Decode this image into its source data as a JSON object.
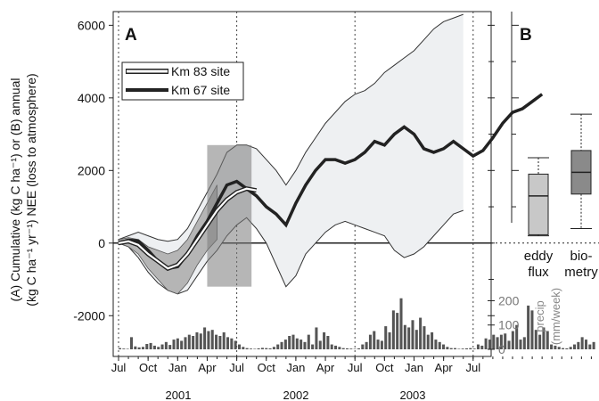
{
  "chart_data": [
    {
      "panel": "A",
      "type": "line",
      "panel_label": "A",
      "ylabel_line1": "(A) Cumulative (kg C ha⁻¹) or (B) annual",
      "ylabel_line2": "(kg C ha⁻¹ yr⁻¹) NEE (loss to atmosphere)",
      "ylim": [
        -3000,
        6500
      ],
      "yticks": [
        "6000",
        "4000",
        "2000",
        "0",
        "-2000"
      ],
      "x_month_ticks": [
        "Jul",
        "Oct",
        "Jan",
        "Apr",
        "Jul",
        "Oct",
        "Jan",
        "Apr",
        "Jul",
        "Oct",
        "Jan",
        "Apr",
        "Jul"
      ],
      "x_year_labels": [
        "2001",
        "2002",
        "2003"
      ],
      "legend": [
        {
          "label": "Km 83 site",
          "color": "#ffffff",
          "edge": "#222222"
        },
        {
          "label": "Km 67 site",
          "color": "#222222",
          "edge": "#222222"
        }
      ],
      "series": [
        {
          "name": "Km 67 site",
          "x_month": [
            0,
            1,
            2,
            3,
            4,
            5,
            6,
            7,
            8,
            9,
            10,
            11,
            12,
            13,
            14,
            15,
            16,
            17,
            18,
            19,
            20,
            21,
            22,
            23,
            24,
            25,
            26,
            27,
            28,
            29,
            30,
            31,
            32,
            33,
            34,
            35,
            36,
            37,
            38,
            39,
            40,
            41,
            42,
            43,
            44,
            45,
            46,
            47,
            48,
            49
          ],
          "center": [
            0,
            80,
            60,
            -200,
            -500,
            -700,
            -650,
            -300,
            200,
            600,
            1100,
            1600,
            1700,
            1500,
            1300,
            1000,
            800,
            500,
            1100,
            1600,
            2000,
            2300,
            2300,
            2200,
            2300,
            2500,
            2800,
            2700,
            3000,
            3200,
            3000,
            2600,
            2500,
            2600,
            2800,
            2600,
            2400,
            2550,
            2900,
            3300,
            3600,
            3700,
            3900,
            4100,
            null,
            null,
            null,
            null,
            null,
            null
          ],
          "upper": [
            100,
            200,
            300,
            200,
            100,
            50,
            100,
            400,
            900,
            1400,
            1900,
            2500,
            2700,
            2700,
            2600,
            2300,
            2000,
            1600,
            2000,
            2500,
            2900,
            3300,
            3600,
            3900,
            4100,
            4200,
            4400,
            4700,
            4900,
            5100,
            5300,
            5600,
            5900,
            6100,
            6200,
            6300,
            null,
            null,
            null,
            null,
            null,
            null,
            null,
            null,
            null,
            null,
            null,
            null,
            null,
            null
          ],
          "lower": [
            0,
            -100,
            -400,
            -800,
            -1100,
            -1300,
            -1400,
            -1300,
            -900,
            -500,
            -200,
            200,
            500,
            700,
            400,
            0,
            -600,
            -1200,
            -900,
            -300,
            0,
            300,
            500,
            600,
            500,
            400,
            300,
            200,
            -200,
            -400,
            -300,
            -100,
            200,
            500,
            800,
            900,
            null,
            null,
            null,
            null,
            null,
            null,
            null,
            null,
            null,
            null,
            null,
            null,
            null,
            null
          ]
        },
        {
          "name": "Km 83 site",
          "x_month": [
            0,
            1,
            2,
            3,
            4,
            5,
            6,
            7,
            8,
            9,
            10,
            11,
            12,
            13,
            14,
            15
          ],
          "center": [
            0,
            50,
            -50,
            -300,
            -500,
            -700,
            -600,
            -300,
            100,
            500,
            900,
            1200,
            1400,
            1500,
            1450,
            null
          ],
          "upper": [
            100,
            150,
            100,
            -100,
            -200,
            -300,
            -200,
            100,
            600,
            1100,
            1600,
            2100,
            2500,
            2700,
            null,
            null
          ],
          "lower": [
            0,
            -100,
            -300,
            -700,
            -1000,
            -1300,
            -1400,
            -1100,
            -600,
            -200,
            100,
            null,
            null,
            null,
            null,
            null
          ]
        }
      ]
    },
    {
      "panel": "precip",
      "type": "bar",
      "name": "precip",
      "ylabel_line1": "precip",
      "ylabel_line2": "(mm/week)",
      "yticks": [
        "200",
        "100",
        "0"
      ],
      "ylim": [
        0,
        220
      ],
      "values": [
        5,
        3,
        2,
        50,
        12,
        8,
        10,
        22,
        26,
        15,
        10,
        20,
        30,
        18,
        40,
        45,
        35,
        50,
        60,
        55,
        70,
        65,
        90,
        75,
        80,
        60,
        55,
        70,
        50,
        45,
        35,
        20,
        10,
        5,
        3,
        2,
        4,
        6,
        5,
        4,
        10,
        20,
        30,
        40,
        55,
        60,
        45,
        40,
        30,
        60,
        20,
        90,
        35,
        70,
        55,
        20,
        15,
        10,
        5,
        4,
        3,
        2,
        4,
        20,
        30,
        60,
        75,
        40,
        35,
        95,
        70,
        160,
        150,
        210,
        100,
        90,
        120,
        80,
        130,
        95,
        60,
        70,
        40,
        30,
        20,
        10,
        5,
        5,
        2,
        3,
        4,
        5,
        3,
        20,
        15,
        45,
        40,
        60,
        50,
        60,
        65,
        35,
        75,
        100,
        40,
        50,
        180,
        160,
        80,
        60,
        90,
        75,
        20,
        15,
        10,
        5,
        4,
        10,
        20,
        30,
        50,
        40,
        20,
        30
      ]
    },
    {
      "panel": "B",
      "type": "box",
      "panel_label": "B",
      "categories": [
        "eddy\nflux",
        "bio-\nmetry"
      ],
      "category_line1": [
        "eddy",
        "bio-"
      ],
      "category_line2": [
        "flux",
        "metry"
      ],
      "boxes": [
        {
          "whisker_low": 200,
          "q1": 230,
          "median": 1300,
          "q3": 1900,
          "whisker_high": 2350,
          "fill": "#c8c8c8"
        },
        {
          "whisker_low": 400,
          "q1": 1350,
          "median": 1950,
          "q3": 2550,
          "whisker_high": 3550,
          "fill": "#8a8a8a"
        }
      ]
    }
  ]
}
